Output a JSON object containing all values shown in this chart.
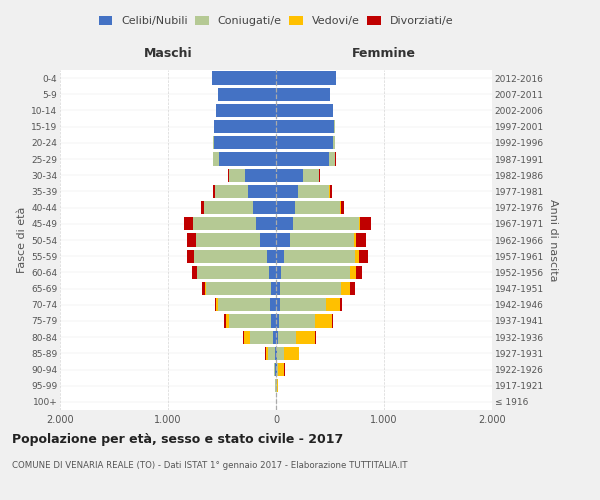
{
  "age_groups": [
    "100+",
    "95-99",
    "90-94",
    "85-89",
    "80-84",
    "75-79",
    "70-74",
    "65-69",
    "60-64",
    "55-59",
    "50-54",
    "45-49",
    "40-44",
    "35-39",
    "30-34",
    "25-29",
    "20-24",
    "15-19",
    "10-14",
    "5-9",
    "0-4"
  ],
  "birth_years": [
    "≤ 1916",
    "1917-1921",
    "1922-1926",
    "1927-1931",
    "1932-1936",
    "1937-1941",
    "1942-1946",
    "1947-1951",
    "1952-1956",
    "1957-1961",
    "1962-1966",
    "1967-1971",
    "1972-1976",
    "1977-1981",
    "1982-1986",
    "1987-1991",
    "1992-1996",
    "1997-2001",
    "2002-2006",
    "2007-2011",
    "2012-2016"
  ],
  "maschi_celibi": [
    2,
    3,
    5,
    12,
    30,
    45,
    55,
    50,
    65,
    85,
    145,
    185,
    210,
    260,
    290,
    530,
    570,
    570,
    555,
    535,
    590
  ],
  "maschi_coniugati": [
    0,
    2,
    12,
    60,
    210,
    390,
    480,
    600,
    665,
    670,
    595,
    585,
    455,
    305,
    145,
    52,
    12,
    5,
    0,
    0,
    0
  ],
  "maschi_vedovi": [
    0,
    0,
    5,
    22,
    55,
    32,
    22,
    12,
    5,
    3,
    2,
    2,
    0,
    0,
    0,
    0,
    0,
    0,
    0,
    0,
    0
  ],
  "maschi_divorziati": [
    0,
    0,
    0,
    5,
    10,
    12,
    12,
    22,
    42,
    62,
    82,
    82,
    32,
    22,
    5,
    3,
    0,
    0,
    0,
    0,
    0
  ],
  "femmine_nubili": [
    2,
    3,
    5,
    10,
    18,
    28,
    38,
    40,
    50,
    70,
    130,
    160,
    180,
    200,
    250,
    490,
    530,
    540,
    530,
    500,
    555
  ],
  "femmine_coniugate": [
    0,
    5,
    18,
    65,
    165,
    335,
    425,
    565,
    635,
    665,
    595,
    605,
    415,
    295,
    145,
    57,
    17,
    5,
    0,
    0,
    0
  ],
  "femmine_vedove": [
    1,
    12,
    55,
    135,
    175,
    155,
    125,
    82,
    52,
    32,
    17,
    12,
    5,
    3,
    2,
    2,
    0,
    0,
    0,
    0,
    0
  ],
  "femmine_divorziate": [
    0,
    0,
    2,
    5,
    10,
    10,
    20,
    42,
    62,
    82,
    92,
    102,
    32,
    20,
    8,
    3,
    2,
    0,
    0,
    0,
    0
  ],
  "colors": {
    "celibi": "#4472c4",
    "coniugati": "#b5c994",
    "vedovi": "#ffc000",
    "divorziati": "#c00000"
  },
  "title": "Popolazione per età, sesso e stato civile - 2017",
  "subtitle": "COMUNE DI VENARIA REALE (TO) - Dati ISTAT 1° gennaio 2017 - Elaborazione TUTTITALIA.IT",
  "ylabel_left": "Fasce di età",
  "ylabel_right": "Anni di nascita",
  "label_maschi": "Maschi",
  "label_femmine": "Femmine",
  "legend_labels": [
    "Celibi/Nubili",
    "Coniugati/e",
    "Vedovi/e",
    "Divorziati/e"
  ],
  "background_color": "#f0f0f0",
  "plot_bg_color": "#ffffff",
  "xlim": 2000
}
